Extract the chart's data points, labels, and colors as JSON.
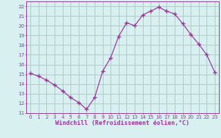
{
  "x": [
    0,
    1,
    2,
    3,
    4,
    5,
    6,
    7,
    8,
    9,
    10,
    11,
    12,
    13,
    14,
    15,
    16,
    17,
    18,
    19,
    20,
    21,
    22,
    23
  ],
  "y": [
    15.1,
    14.8,
    14.4,
    13.9,
    13.3,
    12.6,
    12.1,
    11.4,
    12.6,
    15.3,
    16.7,
    18.9,
    20.3,
    20.0,
    21.1,
    21.5,
    21.9,
    21.5,
    21.2,
    20.2,
    19.1,
    18.1,
    17.0,
    15.2
  ],
  "line_color": "#993399",
  "marker": "+",
  "marker_size": 4,
  "marker_lw": 1.0,
  "bg_color": "#d8f0f0",
  "grid_color": "#b0c8c8",
  "xlabel": "Windchill (Refroidissement éolien,°C)",
  "xlim": [
    -0.5,
    23.5
  ],
  "ylim": [
    11,
    22.5
  ],
  "yticks": [
    11,
    12,
    13,
    14,
    15,
    16,
    17,
    18,
    19,
    20,
    21,
    22
  ],
  "xticks": [
    0,
    1,
    2,
    3,
    4,
    5,
    6,
    7,
    8,
    9,
    10,
    11,
    12,
    13,
    14,
    15,
    16,
    17,
    18,
    19,
    20,
    21,
    22,
    23
  ],
  "tick_color": "#993399",
  "label_color": "#993399",
  "axis_color": "#993399",
  "tick_fontsize": 5.2,
  "xlabel_fontsize": 6.2
}
